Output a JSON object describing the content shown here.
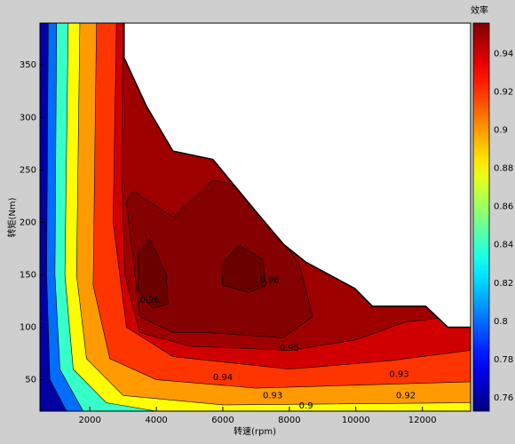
{
  "chart_data": {
    "type": "contourf",
    "xlabel": "转速(rpm)",
    "ylabel": "转矩(Nm)",
    "colorbar_title": "效率",
    "colormap": "jet",
    "xlim": [
      500,
      13450
    ],
    "ylim": [
      20,
      390
    ],
    "clim": [
      0.753,
      0.956
    ],
    "xticks": [
      2000,
      4000,
      6000,
      8000,
      10000,
      12000
    ],
    "yticks": [
      50,
      100,
      150,
      200,
      250,
      300,
      350
    ],
    "cticks": [
      0.76,
      0.78,
      0.8,
      0.82,
      0.84,
      0.86,
      0.88,
      0.9,
      0.92,
      0.94
    ],
    "boundary": {
      "x": [
        3030,
        3030,
        3700,
        4500,
        5700,
        7030,
        7830,
        8500,
        9970,
        10500,
        12100,
        12770,
        13450
      ],
      "y": [
        390,
        357,
        311,
        268,
        260,
        209,
        179,
        162,
        137,
        120,
        120,
        100,
        100
      ]
    },
    "regions": [
      {
        "level": 0.76,
        "x": [
          500,
          13450,
          13450,
          500
        ],
        "y": [
          20,
          20,
          390,
          390
        ]
      },
      {
        "level": 0.8,
        "x": [
          750,
          700,
          800,
          1300,
          13450,
          13450
        ],
        "y": [
          390,
          150,
          50,
          20,
          20,
          390
        ]
      },
      {
        "level": 0.84,
        "x": [
          1000,
          950,
          1100,
          1800,
          13450,
          13450
        ],
        "y": [
          390,
          150,
          60,
          20,
          20,
          390
        ]
      },
      {
        "level": 0.88,
        "x": [
          1350,
          1250,
          1500,
          2500,
          4000,
          13450,
          13450
        ],
        "y": [
          390,
          150,
          60,
          28,
          20,
          20,
          390
        ]
      },
      {
        "level": 0.9,
        "x": [
          1700,
          1600,
          1900,
          3000,
          6000,
          13450,
          13450
        ],
        "y": [
          390,
          150,
          70,
          35,
          26,
          28,
          390
        ]
      },
      {
        "level": 0.92,
        "x": [
          2200,
          2100,
          2600,
          4000,
          7000,
          13450,
          13450
        ],
        "y": [
          390,
          140,
          70,
          50,
          42,
          48,
          390
        ]
      },
      {
        "level": 0.94,
        "x": [
          2800,
          2700,
          3100,
          4500,
          8000,
          11000,
          13450,
          13450
        ],
        "y": [
          390,
          200,
          100,
          72,
          60,
          68,
          78,
          390
        ]
      },
      {
        "level": 0.95,
        "x": [
          3000,
          2950,
          3050,
          3500,
          5000,
          8000,
          10000,
          11500,
          13450,
          13450
        ],
        "y": [
          390,
          250,
          150,
          95,
          82,
          78,
          88,
          105,
          112,
          390
        ]
      },
      {
        "level": 0.955,
        "x": [
          3100,
          3300,
          4500,
          5700,
          6600,
          8300,
          8700,
          7800,
          5500,
          4500,
          3500
        ],
        "y": [
          220,
          230,
          205,
          240,
          235,
          160,
          110,
          90,
          95,
          95,
          110
        ]
      },
      {
        "level": 0.96,
        "x": [
          3450,
          3800,
          4300,
          4350,
          3900,
          3450
        ],
        "y": [
          170,
          185,
          150,
          122,
          118,
          135
        ]
      },
      {
        "level": 0.96,
        "x": [
          5950,
          6500,
          7200,
          7300,
          6800,
          6000
        ],
        "y": [
          160,
          178,
          165,
          140,
          133,
          140
        ]
      }
    ],
    "contour_labels": [
      {
        "text": "0.94",
        "x": 6000,
        "y": 52
      },
      {
        "text": "0.93",
        "x": 7500,
        "y": 35
      },
      {
        "text": "0.92",
        "x": 11500,
        "y": 35
      },
      {
        "text": "0.9",
        "x": 8500,
        "y": 25
      },
      {
        "text": "0.95",
        "x": 8000,
        "y": 80
      },
      {
        "text": "0.96",
        "x": 3800,
        "y": 126
      },
      {
        "text": "0.96",
        "x": 7400,
        "y": 145
      },
      {
        "text": "0.93",
        "x": 11300,
        "y": 55
      }
    ]
  }
}
